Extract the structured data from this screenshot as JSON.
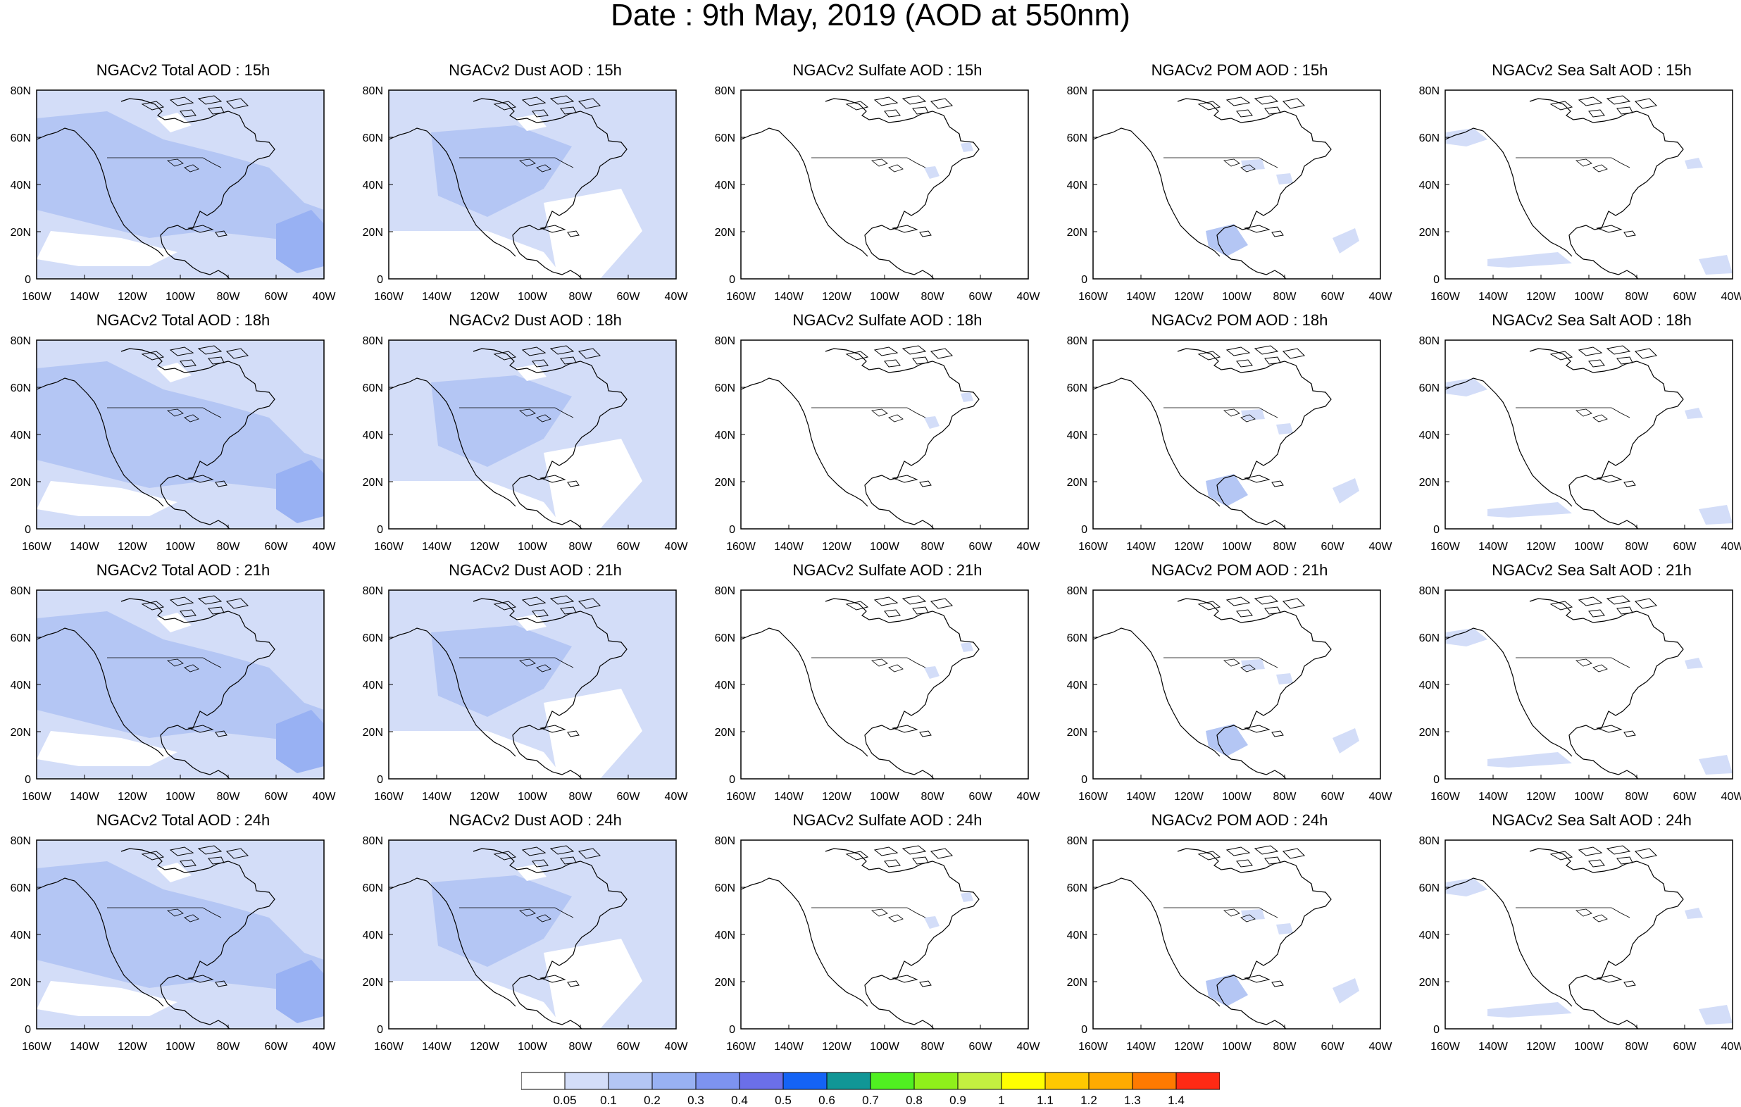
{
  "title": "Date : 9th May, 2019 (AOD at 550nm)",
  "lat_labels": [
    "80N",
    "60N",
    "40N",
    "20N",
    "0"
  ],
  "lon_labels": [
    "160W",
    "140W",
    "120W",
    "100W",
    "80W",
    "60W",
    "40W"
  ],
  "panels": [
    [
      {
        "title": "NGACv2 Total AOD : 15h",
        "level": 2,
        "kind": "total"
      },
      {
        "title": "NGACv2 Dust AOD : 15h",
        "level": 1,
        "kind": "dust"
      },
      {
        "title": "NGACv2 Sulfate AOD : 15h",
        "level": 0,
        "kind": "sulfate"
      },
      {
        "title": "NGACv2 POM AOD : 15h",
        "level": 0,
        "kind": "pom"
      },
      {
        "title": "NGACv2 Sea Salt AOD : 15h",
        "level": 0,
        "kind": "seasalt"
      }
    ],
    [
      {
        "title": "NGACv2 Total AOD : 18h",
        "level": 2,
        "kind": "total"
      },
      {
        "title": "NGACv2 Dust AOD : 18h",
        "level": 1,
        "kind": "dust"
      },
      {
        "title": "NGACv2 Sulfate AOD : 18h",
        "level": 0,
        "kind": "sulfate"
      },
      {
        "title": "NGACv2 POM AOD : 18h",
        "level": 0,
        "kind": "pom"
      },
      {
        "title": "NGACv2 Sea Salt AOD : 18h",
        "level": 0,
        "kind": "seasalt"
      }
    ],
    [
      {
        "title": "NGACv2 Total AOD : 21h",
        "level": 2,
        "kind": "total"
      },
      {
        "title": "NGACv2 Dust AOD : 21h",
        "level": 1,
        "kind": "dust"
      },
      {
        "title": "NGACv2 Sulfate AOD : 21h",
        "level": 0,
        "kind": "sulfate"
      },
      {
        "title": "NGACv2 POM AOD : 21h",
        "level": 0,
        "kind": "pom"
      },
      {
        "title": "NGACv2 Sea Salt AOD : 21h",
        "level": 0,
        "kind": "seasalt"
      }
    ],
    [
      {
        "title": "NGACv2 Total AOD : 24h",
        "level": 2,
        "kind": "total"
      },
      {
        "title": "NGACv2 Dust AOD : 24h",
        "level": 1,
        "kind": "dust"
      },
      {
        "title": "NGACv2 Sulfate AOD : 24h",
        "level": 0,
        "kind": "sulfate"
      },
      {
        "title": "NGACv2 POM AOD : 24h",
        "level": 0,
        "kind": "pom"
      },
      {
        "title": "NGACv2 Sea Salt  AOD : 24h",
        "level": 0,
        "kind": "seasalt"
      }
    ]
  ],
  "colorbar": {
    "colors": [
      "#ffffff",
      "#d3ddf8",
      "#b4c6f4",
      "#98b1f3",
      "#7d93f0",
      "#6b6fe8",
      "#1463f5",
      "#119696",
      "#50f021",
      "#8ff01b",
      "#c4f040",
      "#ffff00",
      "#ffc800",
      "#ffab00",
      "#ff7a00",
      "#ff2a14"
    ],
    "labels": [
      "0.05",
      "0.1",
      "0.2",
      "0.3",
      "0.4",
      "0.5",
      "0.6",
      "0.7",
      "0.8",
      "0.9",
      "1",
      "1.1",
      "1.2",
      "1.3",
      "1.4"
    ]
  }
}
